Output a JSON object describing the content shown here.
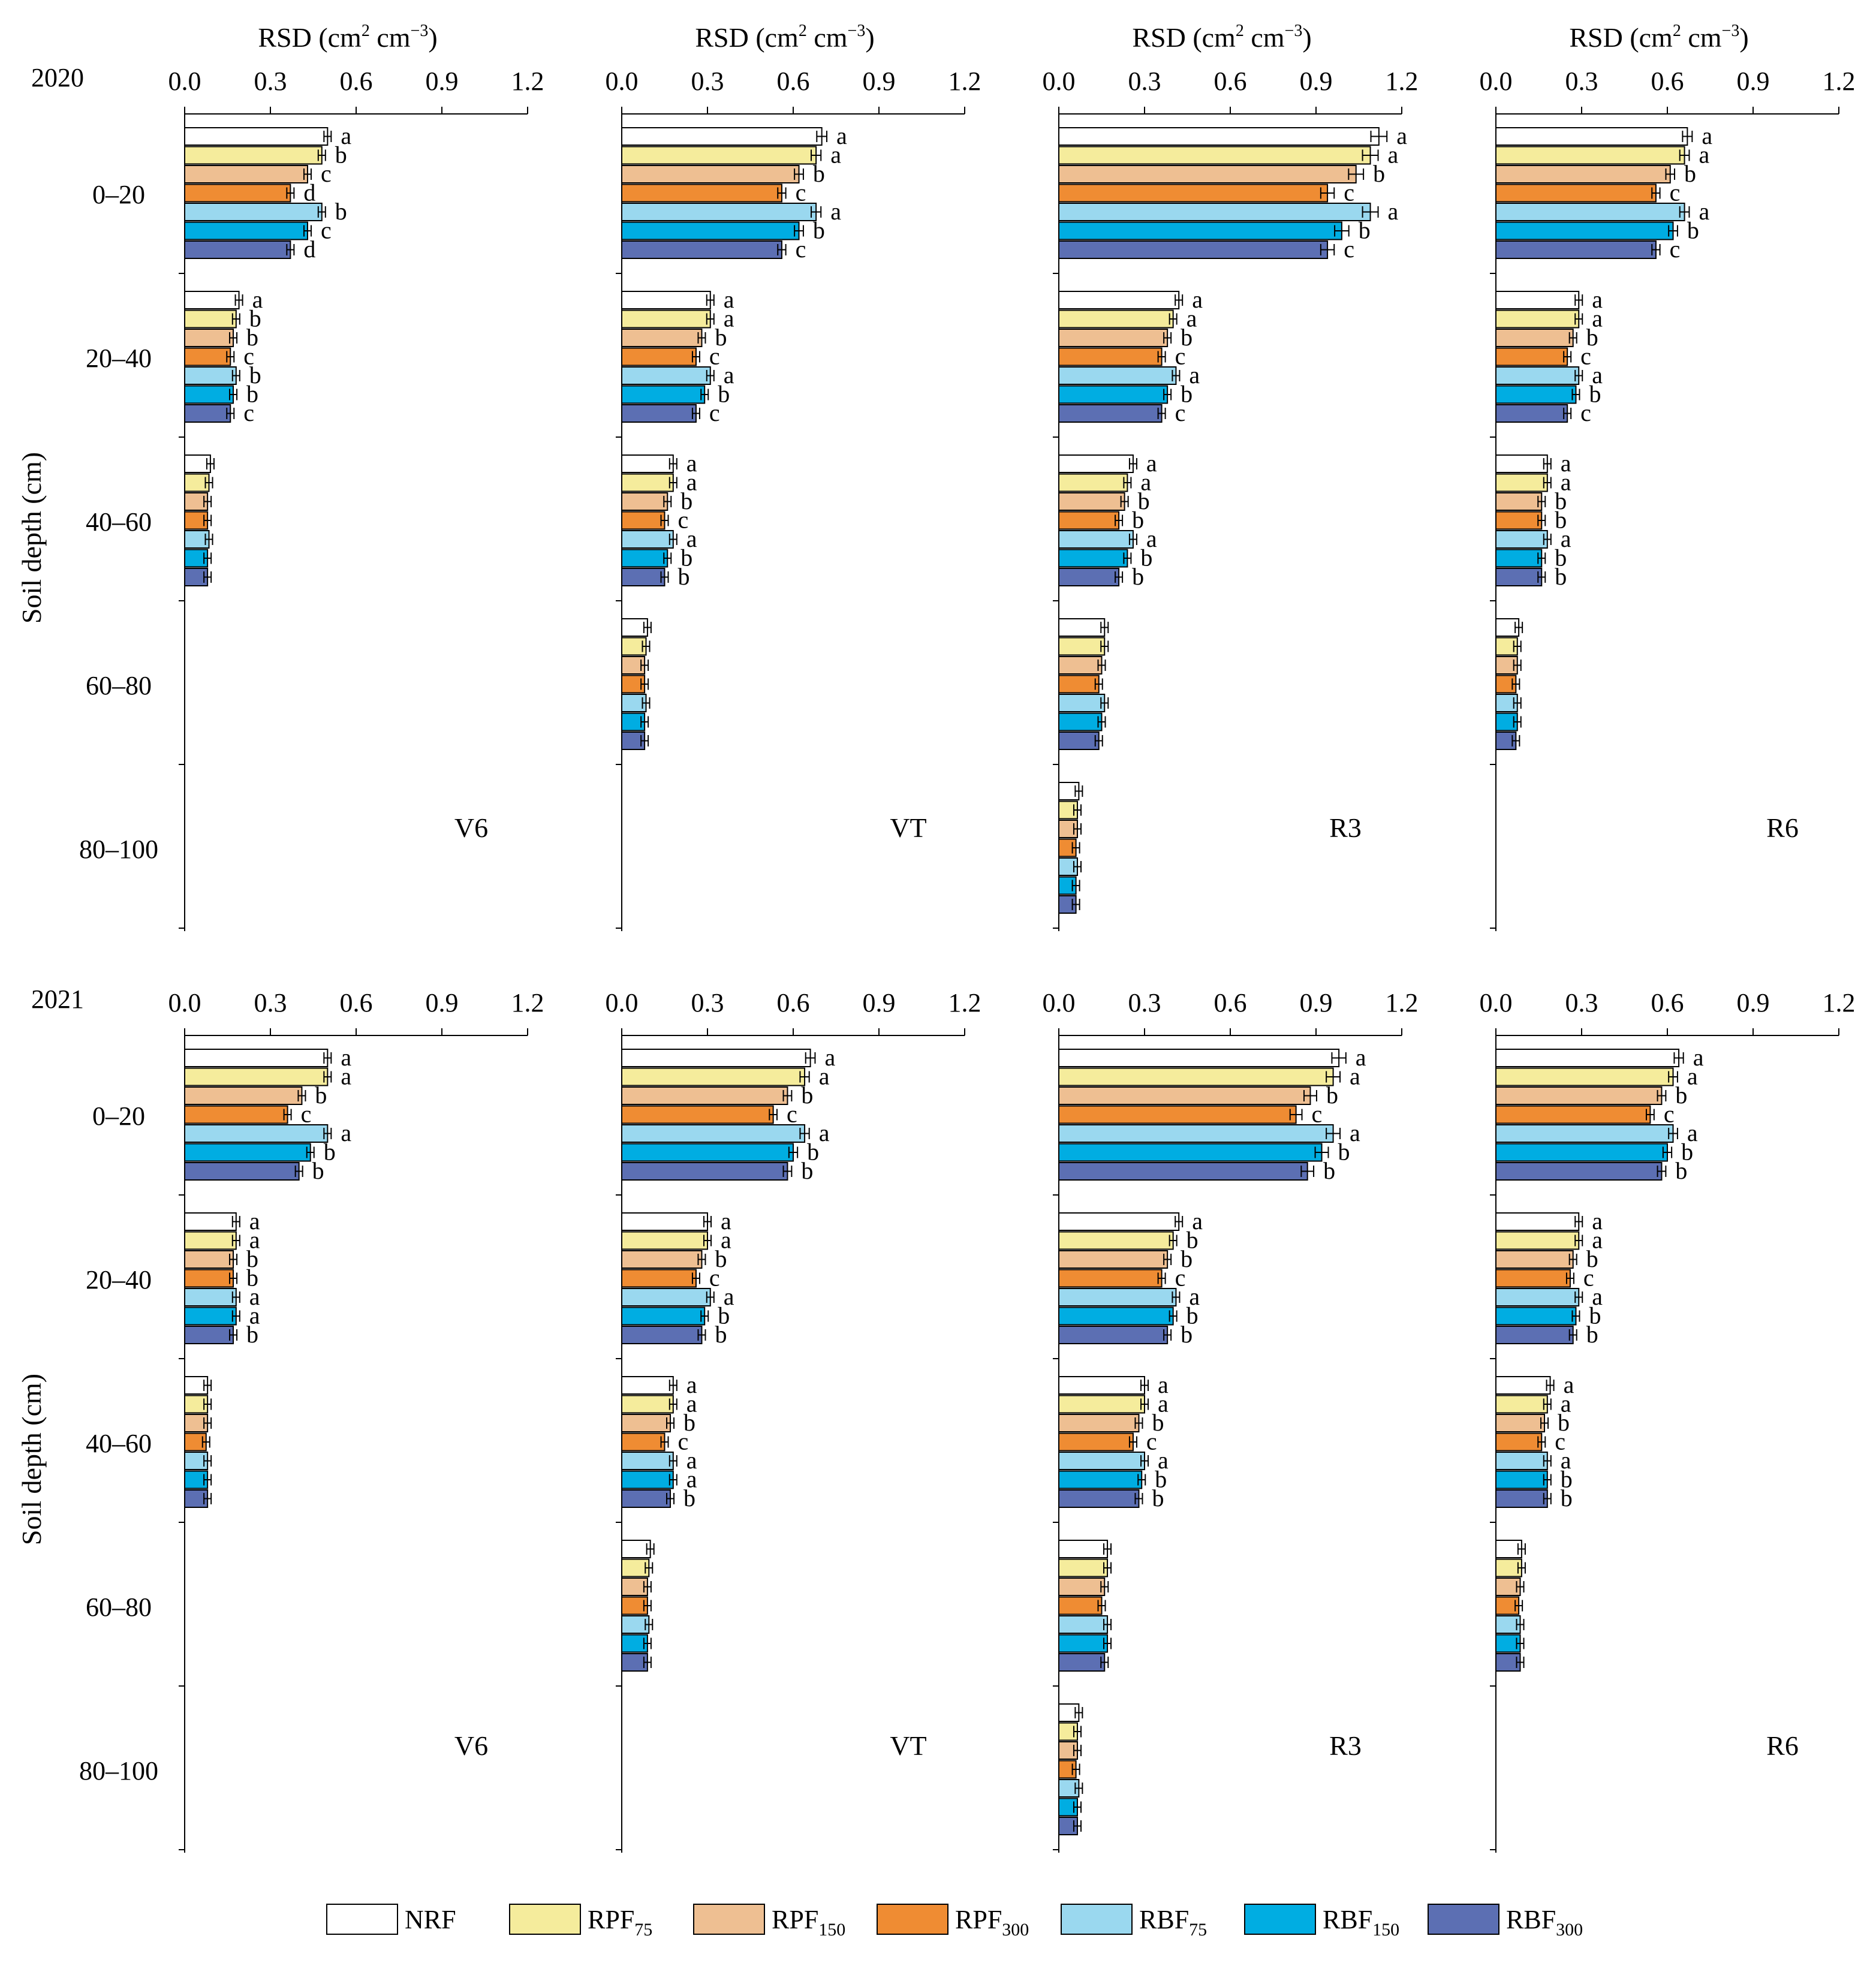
{
  "chart_data": {
    "type": "bar",
    "orientation": "horizontal",
    "x_axis": {
      "label_main": "RSD (cm",
      "label_sup1": "2",
      "label_mid": " cm",
      "label_sup2": "−3",
      "label_end": ")",
      "range": [
        0,
        1.2
      ],
      "ticks": [
        "0.0",
        "0.3",
        "0.6",
        "0.9",
        "1.2"
      ]
    },
    "y_axis_label": "Soil depth (cm)",
    "depths": [
      "0–20",
      "20–40",
      "40–60",
      "60–80",
      "80–100"
    ],
    "treatments": [
      {
        "name": "NRF",
        "sub": "",
        "color": "#ffffff"
      },
      {
        "name": "RPF",
        "sub": "75",
        "color": "#f5ec9c"
      },
      {
        "name": "RPF",
        "sub": "150",
        "color": "#eebf92"
      },
      {
        "name": "RPF",
        "sub": "300",
        "color": "#ef8c33"
      },
      {
        "name": "RBF",
        "sub": "75",
        "color": "#9ad8ef"
      },
      {
        "name": "RBF",
        "sub": "150",
        "color": "#00ade2"
      },
      {
        "name": "RBF",
        "sub": "300",
        "color": "#5c6fb3"
      }
    ],
    "rows": [
      {
        "year": "2020",
        "panels": [
          {
            "stage": "V6",
            "groups": [
              {
                "values": [
                  0.5,
                  0.48,
                  0.43,
                  0.37,
                  0.48,
                  0.43,
                  0.37
                ],
                "letters": [
                  "a",
                  "b",
                  "c",
                  "d",
                  "b",
                  "c",
                  "d"
                ]
              },
              {
                "values": [
                  0.19,
                  0.18,
                  0.17,
                  0.16,
                  0.18,
                  0.17,
                  0.16
                ],
                "letters": [
                  "a",
                  "b",
                  "b",
                  "c",
                  "b",
                  "b",
                  "c"
                ]
              },
              {
                "values": [
                  0.09,
                  0.085,
                  0.08,
                  0.08,
                  0.085,
                  0.08,
                  0.08
                ],
                "letters": []
              },
              null,
              null
            ]
          },
          {
            "stage": "VT",
            "groups": [
              {
                "values": [
                  0.7,
                  0.68,
                  0.62,
                  0.56,
                  0.68,
                  0.62,
                  0.56
                ],
                "letters": [
                  "a",
                  "a",
                  "b",
                  "c",
                  "a",
                  "b",
                  "c"
                ]
              },
              {
                "values": [
                  0.31,
                  0.31,
                  0.28,
                  0.26,
                  0.31,
                  0.29,
                  0.26
                ],
                "letters": [
                  "a",
                  "a",
                  "b",
                  "c",
                  "a",
                  "b",
                  "c"
                ]
              },
              {
                "values": [
                  0.18,
                  0.18,
                  0.16,
                  0.15,
                  0.18,
                  0.16,
                  0.15
                ],
                "letters": [
                  "a",
                  "a",
                  "b",
                  "c",
                  "a",
                  "b",
                  "b"
                ]
              },
              {
                "values": [
                  0.09,
                  0.085,
                  0.08,
                  0.08,
                  0.085,
                  0.08,
                  0.08
                ],
                "letters": []
              },
              null
            ]
          },
          {
            "stage": "R3",
            "groups": [
              {
                "values": [
                  1.12,
                  1.09,
                  1.04,
                  0.94,
                  1.09,
                  0.99,
                  0.94
                ],
                "letters": [
                  "a",
                  "a",
                  "b",
                  "c",
                  "a",
                  "b",
                  "c"
                ]
              },
              {
                "values": [
                  0.42,
                  0.4,
                  0.38,
                  0.36,
                  0.41,
                  0.38,
                  0.36
                ],
                "letters": [
                  "a",
                  "a",
                  "b",
                  "c",
                  "a",
                  "b",
                  "c"
                ]
              },
              {
                "values": [
                  0.26,
                  0.24,
                  0.23,
                  0.21,
                  0.26,
                  0.24,
                  0.21
                ],
                "letters": [
                  "a",
                  "a",
                  "b",
                  "b",
                  "a",
                  "b",
                  "b"
                ]
              },
              {
                "values": [
                  0.16,
                  0.16,
                  0.15,
                  0.14,
                  0.16,
                  0.15,
                  0.14
                ],
                "letters": []
              },
              {
                "values": [
                  0.07,
                  0.065,
                  0.065,
                  0.06,
                  0.065,
                  0.06,
                  0.06
                ],
                "letters": []
              }
            ]
          },
          {
            "stage": "R6",
            "groups": [
              {
                "values": [
                  0.67,
                  0.66,
                  0.61,
                  0.56,
                  0.66,
                  0.62,
                  0.56
                ],
                "letters": [
                  "a",
                  "a",
                  "b",
                  "c",
                  "a",
                  "b",
                  "c"
                ]
              },
              {
                "values": [
                  0.29,
                  0.29,
                  0.27,
                  0.25,
                  0.29,
                  0.28,
                  0.25
                ],
                "letters": [
                  "a",
                  "a",
                  "b",
                  "c",
                  "a",
                  "b",
                  "c"
                ]
              },
              {
                "values": [
                  0.18,
                  0.18,
                  0.16,
                  0.16,
                  0.18,
                  0.16,
                  0.16
                ],
                "letters": [
                  "a",
                  "a",
                  "b",
                  "b",
                  "a",
                  "b",
                  "b"
                ]
              },
              {
                "values": [
                  0.08,
                  0.075,
                  0.075,
                  0.07,
                  0.075,
                  0.075,
                  0.07
                ],
                "letters": []
              },
              null
            ]
          }
        ]
      },
      {
        "year": "2021",
        "panels": [
          {
            "stage": "V6",
            "groups": [
              {
                "values": [
                  0.5,
                  0.5,
                  0.41,
                  0.36,
                  0.5,
                  0.44,
                  0.4
                ],
                "letters": [
                  "a",
                  "a",
                  "b",
                  "c",
                  "a",
                  "b",
                  "b"
                ]
              },
              {
                "values": [
                  0.18,
                  0.18,
                  0.17,
                  0.17,
                  0.18,
                  0.18,
                  0.17
                ],
                "letters": [
                  "a",
                  "a",
                  "b",
                  "b",
                  "a",
                  "a",
                  "b"
                ]
              },
              {
                "values": [
                  0.08,
                  0.08,
                  0.08,
                  0.075,
                  0.08,
                  0.08,
                  0.08
                ],
                "letters": []
              },
              null,
              null
            ]
          },
          {
            "stage": "VT",
            "groups": [
              {
                "values": [
                  0.66,
                  0.64,
                  0.58,
                  0.53,
                  0.64,
                  0.6,
                  0.58
                ],
                "letters": [
                  "a",
                  "a",
                  "b",
                  "c",
                  "a",
                  "b",
                  "b"
                ]
              },
              {
                "values": [
                  0.3,
                  0.3,
                  0.28,
                  0.26,
                  0.31,
                  0.29,
                  0.28
                ],
                "letters": [
                  "a",
                  "a",
                  "b",
                  "c",
                  "a",
                  "b",
                  "b"
                ]
              },
              {
                "values": [
                  0.18,
                  0.18,
                  0.17,
                  0.15,
                  0.18,
                  0.18,
                  0.17
                ],
                "letters": [
                  "a",
                  "a",
                  "b",
                  "c",
                  "a",
                  "a",
                  "b"
                ]
              },
              {
                "values": [
                  0.1,
                  0.095,
                  0.09,
                  0.09,
                  0.095,
                  0.09,
                  0.09
                ],
                "letters": []
              },
              null
            ]
          },
          {
            "stage": "R3",
            "groups": [
              {
                "values": [
                  0.98,
                  0.96,
                  0.88,
                  0.83,
                  0.96,
                  0.92,
                  0.87
                ],
                "letters": [
                  "a",
                  "a",
                  "b",
                  "c",
                  "a",
                  "b",
                  "b"
                ]
              },
              {
                "values": [
                  0.42,
                  0.4,
                  0.38,
                  0.36,
                  0.41,
                  0.4,
                  0.38
                ],
                "letters": [
                  "a",
                  "b",
                  "b",
                  "c",
                  "a",
                  "b",
                  "b"
                ]
              },
              {
                "values": [
                  0.3,
                  0.3,
                  0.28,
                  0.26,
                  0.3,
                  0.29,
                  0.28
                ],
                "letters": [
                  "a",
                  "a",
                  "b",
                  "c",
                  "a",
                  "b",
                  "b"
                ]
              },
              {
                "values": [
                  0.17,
                  0.17,
                  0.16,
                  0.15,
                  0.17,
                  0.17,
                  0.16
                ],
                "letters": []
              },
              {
                "values": [
                  0.07,
                  0.065,
                  0.065,
                  0.06,
                  0.07,
                  0.065,
                  0.065
                ],
                "letters": []
              }
            ]
          },
          {
            "stage": "R6",
            "groups": [
              {
                "values": [
                  0.64,
                  0.62,
                  0.58,
                  0.54,
                  0.62,
                  0.6,
                  0.58
                ],
                "letters": [
                  "a",
                  "a",
                  "b",
                  "c",
                  "a",
                  "b",
                  "b"
                ]
              },
              {
                "values": [
                  0.29,
                  0.29,
                  0.27,
                  0.26,
                  0.29,
                  0.28,
                  0.27
                ],
                "letters": [
                  "a",
                  "a",
                  "b",
                  "c",
                  "a",
                  "b",
                  "b"
                ]
              },
              {
                "values": [
                  0.19,
                  0.18,
                  0.17,
                  0.16,
                  0.18,
                  0.18,
                  0.18
                ],
                "letters": [
                  "a",
                  "a",
                  "b",
                  "c",
                  "a",
                  "b",
                  "b"
                ]
              },
              {
                "values": [
                  0.09,
                  0.09,
                  0.085,
                  0.08,
                  0.085,
                  0.085,
                  0.085
                ],
                "letters": []
              },
              null
            ]
          }
        ]
      }
    ]
  }
}
